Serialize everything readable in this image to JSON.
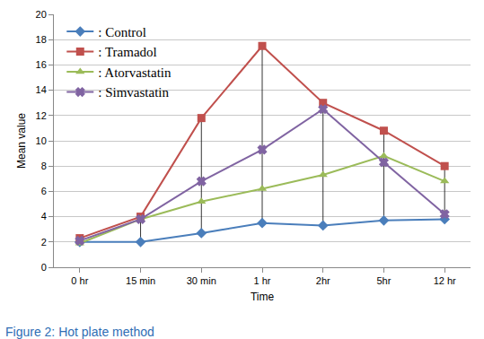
{
  "chart_data": {
    "type": "line",
    "title": "Figure 2: Hot plate method",
    "x_label": "Time",
    "y_label": "Mean value",
    "categories": [
      "0 hr",
      "15 min",
      "30 min",
      "1 hr",
      "2hr",
      "5hr",
      "12 hr"
    ],
    "series": [
      {
        "name": ": Control",
        "color": "#4a7ebb",
        "marker": "diamond",
        "values": [
          2,
          2,
          2.7,
          3.5,
          3.3,
          3.7,
          3.8
        ]
      },
      {
        "name": ": Tramadol",
        "color": "#c0504d",
        "marker": "square",
        "values": [
          2.3,
          4,
          11.8,
          17.5,
          13,
          10.8,
          8
        ]
      },
      {
        "name": ": Atorvastatin",
        "color": "#9bbb59",
        "marker": "triangle-up",
        "values": [
          1.9,
          3.8,
          5.2,
          6.2,
          7.3,
          8.8,
          6.8
        ]
      },
      {
        "name": ": Simvastatin",
        "color": "#8064a2",
        "marker": "x",
        "values": [
          2.1,
          3.8,
          6.8,
          9.3,
          12.5,
          8.3,
          4.2
        ]
      }
    ],
    "ylim": [
      0,
      20
    ],
    "yticks": [
      0,
      2,
      4,
      6,
      8,
      10,
      12,
      14,
      16,
      18,
      20
    ],
    "grid": true,
    "legend": "top-left"
  }
}
